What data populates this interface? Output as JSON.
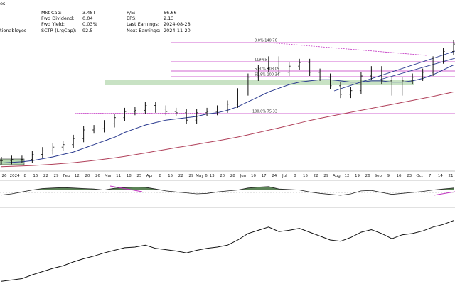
{
  "header": {
    "stats": [
      {
        "label": "Mkt Cap:",
        "value": "3.48T"
      },
      {
        "label": "P/E:",
        "value": "66.66"
      },
      {
        "label": "Fwd Dividend:",
        "value": "0.04"
      },
      {
        "label": "EPS:",
        "value": "2.13"
      },
      {
        "label": "Fwd Yield:",
        "value": "0.03%"
      },
      {
        "label": "Last Earnings:",
        "value": "2024-08-28"
      },
      {
        "label": "SCTR (LrgCap):",
        "value": "92.5"
      },
      {
        "label": "Next Earnings:",
        "value": "2024-11-20"
      }
    ],
    "left_fragments": [
      "es",
      "tionable:",
      "yes"
    ]
  },
  "colors": {
    "price": "#111111",
    "sma_short": "#2a3a8f",
    "sma_long": "#b0405a",
    "fib": "#c030c0",
    "support_band": "#b5d8b0",
    "trend": "#2a3a8f",
    "momentum_fill": "#3f6d3a",
    "background": "#ffffff"
  },
  "chart_data": [
    {
      "type": "line",
      "panel": "price",
      "x": [
        "Dec 20",
        "Dec 26",
        "2024",
        "Jan 8",
        "Jan 16",
        "Jan 22",
        "Jan 29",
        "Feb",
        "Feb 12",
        "Feb 20",
        "Feb 26",
        "Mar",
        "Mar 11",
        "Mar 18",
        "Mar 25",
        "Apr",
        "Apr 8",
        "Apr 15",
        "Apr 22",
        "Apr 29",
        "May 6",
        "May 13",
        "May 20",
        "May 28",
        "Jun",
        "Jun 10",
        "Jun 17",
        "Jun 24",
        "Jul",
        "Jul 8",
        "Jul 15",
        "Jul 22",
        "Jul 29",
        "Aug",
        "Aug 12",
        "Aug 19",
        "Aug 26",
        "Sep",
        "Sep 9",
        "Sep 16",
        "Sep 23",
        "Oct",
        "Oct 7",
        "Oct 14",
        "Oct 21"
      ],
      "series": [
        {
          "values": [
            48,
            49,
            49,
            53,
            56,
            59,
            61,
            66,
            73,
            74,
            78,
            83,
            88,
            89,
            93,
            90,
            88,
            87,
            81,
            87,
            88,
            90,
            94,
            104,
            116,
            123,
            130,
            120,
            125,
            128,
            120,
            116,
            109,
            102,
            105,
            117,
            122,
            113,
            104,
            113,
            116,
            120,
            130,
            137,
            143
          ]
        },
        {
          "values": [
            46,
            46.5,
            47,
            48,
            49.5,
            51,
            53,
            55,
            58,
            61,
            64,
            67,
            71,
            74,
            77,
            79,
            81,
            82,
            83,
            84,
            86,
            87,
            89,
            92,
            96,
            100,
            104,
            107,
            110,
            112,
            113,
            114,
            114,
            113,
            112,
            112,
            113,
            113,
            112,
            112,
            113,
            115,
            118,
            122,
            126
          ]
        },
        {
          "values": [
            43,
            43.3,
            43.6,
            44,
            44.5,
            45,
            45.6,
            46.3,
            47.2,
            48.1,
            49.1,
            50.2,
            51.4,
            52.8,
            54.2,
            55.7,
            57.1,
            58.5,
            59.9,
            61.3,
            62.7,
            64.1,
            65.6,
            67.2,
            69,
            70.9,
            72.8,
            74.7,
            76.7,
            78.7,
            80.7,
            82.5,
            84.2,
            85.8,
            87.4,
            89,
            90.6,
            92.2,
            93.8,
            95.4,
            97,
            98.7,
            100.4,
            102.2,
            104
          ]
        }
      ],
      "fib_levels": [
        {
          "label": "0.0%",
          "value": "140.76"
        },
        {
          "label": "",
          "value": "119.65"
        },
        {
          "label": "50.0%",
          "value": "108.09"
        },
        {
          "label": "61.8%",
          "value": "100.34"
        },
        {
          "label": "100.0%",
          "value": "75.33"
        }
      ],
      "ylim": [
        40,
        150
      ]
    },
    {
      "type": "area",
      "panel": "momentum",
      "x": [
        "Dec 20",
        "Dec 26",
        "2024",
        "Jan 8",
        "Jan 16",
        "Jan 22",
        "Jan 29",
        "Feb",
        "Feb 12",
        "Feb 20",
        "Feb 26",
        "Mar",
        "Mar 11",
        "Mar 18",
        "Mar 25",
        "Apr",
        "Apr 8",
        "Apr 15",
        "Apr 22",
        "Apr 29",
        "May 6",
        "May 13",
        "May 20",
        "May 28",
        "Jun",
        "Jun 10",
        "Jun 17",
        "Jun 24",
        "Jul",
        "Jul 8",
        "Jul 15",
        "Jul 22",
        "Jul 29",
        "Aug",
        "Aug 12",
        "Aug 19",
        "Aug 26",
        "Sep",
        "Sep 9",
        "Sep 16",
        "Sep 23",
        "Oct",
        "Oct 7",
        "Oct 14",
        "Oct 21"
      ],
      "values": [
        45,
        50,
        58,
        66,
        72,
        74,
        76,
        74,
        72,
        70,
        66,
        73,
        76,
        78,
        77,
        70,
        62,
        58,
        54,
        50,
        52,
        58,
        62,
        66,
        74,
        78,
        80,
        70,
        68,
        66,
        58,
        52,
        48,
        44,
        50,
        62,
        64,
        56,
        48,
        52,
        56,
        60,
        66,
        70,
        74
      ],
      "overbought": 70,
      "oversold": 30,
      "ylim": [
        0,
        100
      ]
    },
    {
      "type": "line",
      "panel": "relative",
      "x": [
        "Dec 20",
        "Dec 26",
        "2024",
        "Jan 8",
        "Jan 16",
        "Jan 22",
        "Jan 29",
        "Feb",
        "Feb 12",
        "Feb 20",
        "Feb 26",
        "Mar",
        "Mar 11",
        "Mar 18",
        "Mar 25",
        "Apr",
        "Apr 8",
        "Apr 15",
        "Apr 22",
        "Apr 29",
        "May 6",
        "May 13",
        "May 20",
        "May 28",
        "Jun",
        "Jun 10",
        "Jun 17",
        "Jun 24",
        "Jul",
        "Jul 8",
        "Jul 15",
        "Jul 22",
        "Jul 29",
        "Aug",
        "Aug 12",
        "Aug 19",
        "Aug 26",
        "Sep",
        "Sep 9",
        "Sep 16",
        "Sep 23",
        "Oct",
        "Oct 7",
        "Oct 14",
        "Oct 21"
      ],
      "values": [
        2,
        4,
        6,
        12,
        17,
        22,
        26,
        32,
        37,
        41,
        46,
        50,
        54,
        55,
        58,
        53,
        51,
        49,
        46,
        50,
        53,
        55,
        58,
        66,
        76,
        81,
        86,
        79,
        81,
        84,
        78,
        72,
        66,
        64,
        70,
        78,
        82,
        76,
        68,
        74,
        76,
        80,
        86,
        90,
        96
      ],
      "ylim": [
        0,
        110
      ]
    }
  ],
  "axis": {
    "x_ticks": [
      "26",
      "2024",
      "8",
      "16",
      "22",
      "29",
      "Feb",
      "12",
      "20",
      "26",
      "Mar",
      "11",
      "18",
      "25",
      "Apr",
      "8",
      "15",
      "22",
      "29",
      "May 6",
      "13",
      "20",
      "28",
      "Jun",
      "10",
      "17",
      "24",
      "Jul",
      "8",
      "15",
      "22",
      "29",
      "Aug",
      "12",
      "19",
      "26",
      "Sep",
      "9",
      "16",
      "23",
      "Oct",
      "7",
      "14",
      "21"
    ]
  }
}
